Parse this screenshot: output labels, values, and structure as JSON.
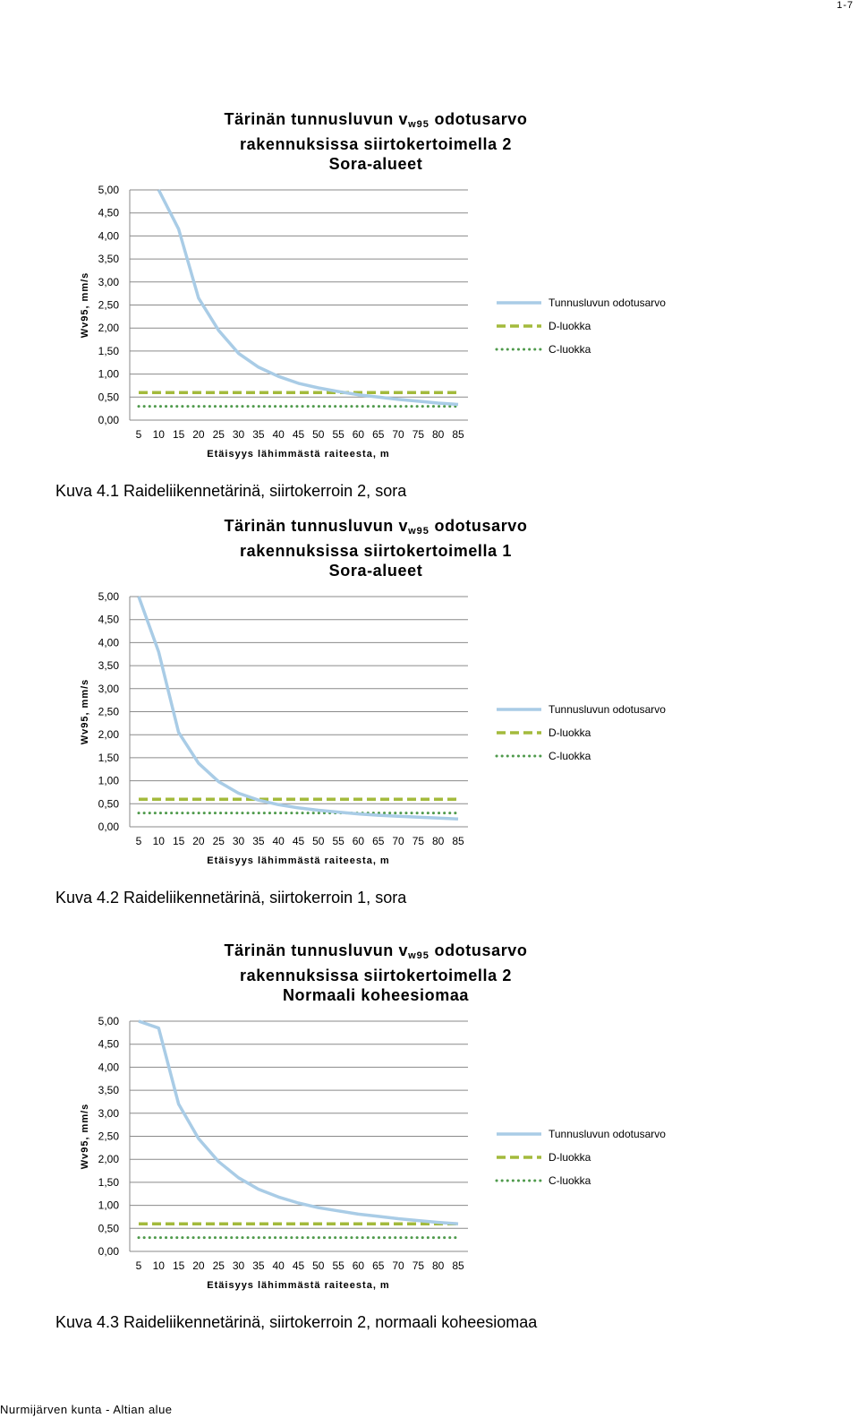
{
  "page": {
    "page_number": "1-7",
    "footer": "Nurmijärven kunta - Altian alue"
  },
  "charts": [
    {
      "title_line1_pre": "Tärinän tunnusluvun v",
      "title_line1_sub": "w95",
      "title_line1_post": " odotusarvo",
      "title_line2": "rakennuksissa siirtokertoimella 2",
      "title_line3": "Sora-alueet",
      "caption": "Kuva 4.1 Raideliikennetärinä, siirtokerroin 2, sora"
    },
    {
      "title_line1_pre": "Tärinän tunnusluvun v",
      "title_line1_sub": "w95",
      "title_line1_post": " odotusarvo",
      "title_line2": "rakennuksissa siirtokertoimella 1",
      "title_line3": "Sora-alueet",
      "caption": "Kuva 4.2 Raideliikennetärinä, siirtokerroin 1, sora"
    },
    {
      "title_line1_pre": "Tärinän tunnusluvun v",
      "title_line1_sub": "w95",
      "title_line1_post": " odotusarvo",
      "title_line2": "rakennuksissa siirtokertoimella 2",
      "title_line3": "Normaali koheesiomaa",
      "caption": "Kuva 4.3 Raideliikennetärinä, siirtokerroin 2, normaali koheesiomaa"
    }
  ],
  "colors": {
    "series_main": "#a9cce6",
    "series_d": "#a3ba3c",
    "series_c": "#4f9a4c",
    "grid": "#8a8a8a"
  },
  "chart_data": [
    {
      "type": "line",
      "title": "Tärinän tunnusluvun vw95 odotusarvo rakennuksissa siirtokertoimella 2 Sora-alueet",
      "xlabel": "Etäisyys lähimmästä raiteesta, m",
      "ylabel": "Wv95, mm/s",
      "ylim": [
        0,
        5
      ],
      "x_ticks": [
        5,
        10,
        15,
        20,
        25,
        30,
        35,
        40,
        45,
        50,
        55,
        60,
        65,
        70,
        75,
        80,
        85
      ],
      "y_ticks": [
        "0,00",
        "0,50",
        "1,00",
        "1,50",
        "2,00",
        "2,50",
        "3,00",
        "3,50",
        "4,00",
        "4,50",
        "5,00"
      ],
      "grid": true,
      "legend_position": "right",
      "series": [
        {
          "name": "Tunnusluvun odotusarvo",
          "style": "solid",
          "x": [
            10,
            15,
            20,
            25,
            30,
            35,
            40,
            45,
            50,
            55,
            60,
            65,
            70,
            75,
            80,
            85
          ],
          "values": [
            5.0,
            4.15,
            2.65,
            1.95,
            1.45,
            1.15,
            0.95,
            0.8,
            0.7,
            0.62,
            0.55,
            0.5,
            0.45,
            0.41,
            0.37,
            0.34
          ]
        },
        {
          "name": "D-luokka",
          "style": "dashed",
          "x": [
            5,
            85
          ],
          "values": [
            0.6,
            0.6
          ]
        },
        {
          "name": "C-luokka",
          "style": "dotted",
          "x": [
            5,
            85
          ],
          "values": [
            0.3,
            0.3
          ]
        }
      ]
    },
    {
      "type": "line",
      "title": "Tärinän tunnusluvun vw95 odotusarvo rakennuksissa siirtokertoimella 1 Sora-alueet",
      "xlabel": "Etäisyys lähimmästä raiteesta, m",
      "ylabel": "Wv95, mm/s",
      "ylim": [
        0,
        5
      ],
      "x_ticks": [
        5,
        10,
        15,
        20,
        25,
        30,
        35,
        40,
        45,
        50,
        55,
        60,
        65,
        70,
        75,
        80,
        85
      ],
      "y_ticks": [
        "0,00",
        "0,50",
        "1,00",
        "1,50",
        "2,00",
        "2,50",
        "3,00",
        "3,50",
        "4,00",
        "4,50",
        "5,00"
      ],
      "grid": true,
      "legend_position": "right",
      "series": [
        {
          "name": "Tunnusluvun odotusarvo",
          "style": "solid",
          "x": [
            5,
            10,
            15,
            20,
            25,
            30,
            35,
            40,
            45,
            50,
            55,
            60,
            65,
            70,
            75,
            80,
            85
          ],
          "values": [
            5.0,
            3.8,
            2.05,
            1.38,
            0.98,
            0.73,
            0.58,
            0.48,
            0.41,
            0.36,
            0.32,
            0.28,
            0.25,
            0.23,
            0.21,
            0.19,
            0.17
          ]
        },
        {
          "name": "D-luokka",
          "style": "dashed",
          "x": [
            5,
            85
          ],
          "values": [
            0.6,
            0.6
          ]
        },
        {
          "name": "C-luokka",
          "style": "dotted",
          "x": [
            5,
            85
          ],
          "values": [
            0.3,
            0.3
          ]
        }
      ]
    },
    {
      "type": "line",
      "title": "Tärinän tunnusluvun vw95 odotusarvo rakennuksissa siirtokertoimella 2 Normaali koheesiomaa",
      "xlabel": "Etäisyys lähimmästä raiteesta, m",
      "ylabel": "Wv95, mm/s",
      "ylim": [
        0,
        5
      ],
      "x_ticks": [
        5,
        10,
        15,
        20,
        25,
        30,
        35,
        40,
        45,
        50,
        55,
        60,
        65,
        70,
        75,
        80,
        85
      ],
      "y_ticks": [
        "0,00",
        "0,50",
        "1,00",
        "1,50",
        "2,00",
        "2,50",
        "3,00",
        "3,50",
        "4,00",
        "4,50",
        "5,00"
      ],
      "grid": true,
      "legend_position": "right",
      "series": [
        {
          "name": "Tunnusluvun odotusarvo",
          "style": "solid",
          "x": [
            5,
            10,
            15,
            20,
            25,
            30,
            35,
            40,
            45,
            50,
            55,
            60,
            65,
            70,
            75,
            80,
            85
          ],
          "values": [
            5.0,
            4.85,
            3.2,
            2.45,
            1.95,
            1.6,
            1.35,
            1.18,
            1.05,
            0.95,
            0.88,
            0.81,
            0.76,
            0.71,
            0.67,
            0.63,
            0.6
          ]
        },
        {
          "name": "D-luokka",
          "style": "dashed",
          "x": [
            5,
            85
          ],
          "values": [
            0.6,
            0.6
          ]
        },
        {
          "name": "C-luokka",
          "style": "dotted",
          "x": [
            5,
            85
          ],
          "values": [
            0.3,
            0.3
          ]
        }
      ]
    }
  ]
}
